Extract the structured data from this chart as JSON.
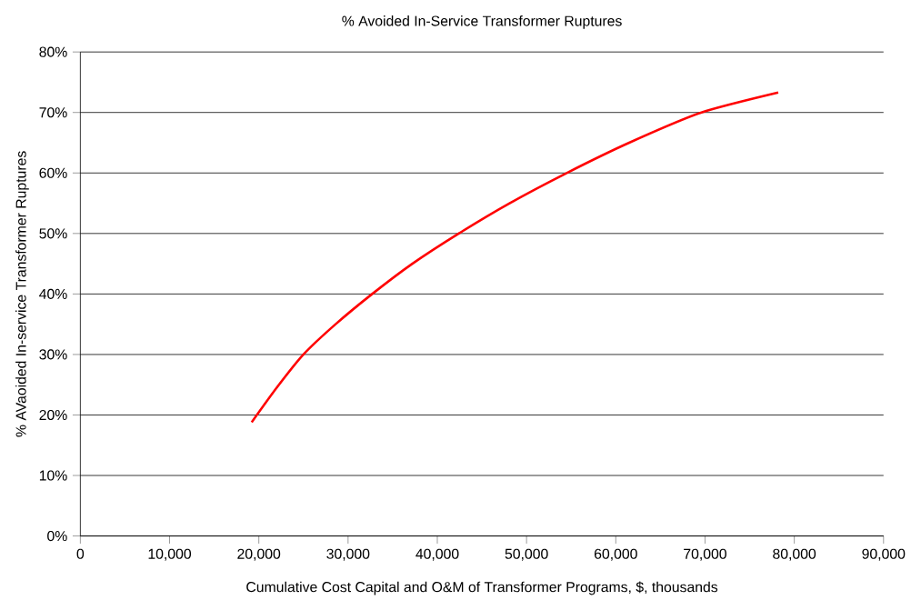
{
  "chart_data": {
    "type": "line",
    "title": "% Avoided In-Service Transformer Ruptures",
    "xlabel": "Cumulative Cost Capital and O&M of Transformer Programs, $, thousands",
    "ylabel": "% AVaoided In-service Transformer Ruptures",
    "x": [
      19200,
      22000,
      25000,
      28600,
      32700,
      37200,
      42400,
      48100,
      54500,
      61500,
      69600,
      78200
    ],
    "series": [
      {
        "color": "#ff0000",
        "values": [
          18.8,
          24.5,
          30,
          35,
          40,
          45,
          50,
          55,
          60,
          65,
          70,
          73.3
        ]
      }
    ],
    "xlim": [
      0,
      90000
    ],
    "ylim": [
      0,
      80
    ],
    "xticks": [
      0,
      {
        "value": 10000,
        "label": "10,000"
      },
      {
        "value": 20000,
        "label": "20,000"
      },
      {
        "value": 30000,
        "label": "30,000"
      },
      {
        "value": 40000,
        "label": "40,000"
      },
      {
        "value": 50000,
        "label": "50,000"
      },
      {
        "value": 60000,
        "label": "60,000"
      },
      {
        "value": 70000,
        "label": "70,000"
      },
      {
        "value": 80000,
        "label": "80,000"
      },
      {
        "value": 90000,
        "label": "90,000"
      }
    ],
    "yticks": [
      {
        "value": 0,
        "label": "0%"
      },
      {
        "value": 10,
        "label": "10%"
      },
      {
        "value": 20,
        "label": "20%"
      },
      {
        "value": 30,
        "label": "30%"
      },
      {
        "value": 40,
        "label": "40%"
      },
      {
        "value": 50,
        "label": "50%"
      },
      {
        "value": 60,
        "label": "60%"
      },
      {
        "value": 70,
        "label": "70%"
      },
      {
        "value": 80,
        "label": "80%"
      }
    ],
    "grid": "y",
    "marker": "none",
    "line_style": "solid"
  }
}
